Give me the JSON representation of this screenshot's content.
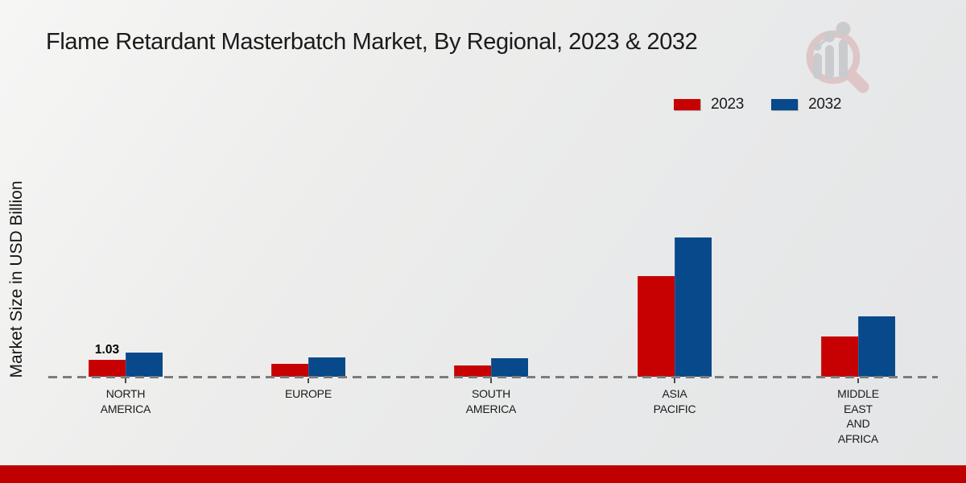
{
  "header": {
    "title": "Flame Retardant Masterbatch Market, By Regional, 2023 & 2032"
  },
  "colors": {
    "series_2023": "#c70101",
    "series_2032": "#07498a",
    "footer_bar": "#c00000",
    "baseline_dash": "#7c7c7c",
    "logo_pink": "#ddbfc1",
    "logo_gray": "#c5c6ca"
  },
  "chart_data": {
    "type": "bar",
    "title": "Flame Retardant Masterbatch Market, By Regional, 2023 & 2032",
    "ylabel": "Market Size in USD Billion",
    "xlabel": "",
    "categories": [
      "NORTH AMERICA",
      "EUROPE",
      "SOUTH AMERICA",
      "ASIA PACIFIC",
      "MIDDLE EAST AND AFRICA"
    ],
    "category_lines": [
      [
        "NORTH",
        "AMERICA"
      ],
      [
        "EUROPE"
      ],
      [
        "SOUTH",
        "AMERICA"
      ],
      [
        "ASIA",
        "PACIFIC"
      ],
      [
        "MIDDLE",
        "EAST",
        "AND",
        "AFRICA"
      ]
    ],
    "series": [
      {
        "name": "2023",
        "color": "#c70101",
        "values": [
          1.03,
          0.78,
          0.69,
          6.13,
          2.45
        ]
      },
      {
        "name": "2032",
        "color": "#07498a",
        "values": [
          1.47,
          1.18,
          1.13,
          8.48,
          3.68
        ]
      }
    ],
    "data_labels": [
      {
        "series": "2023",
        "category": "NORTH AMERICA",
        "text": "1.03"
      }
    ],
    "legend_position": "top-right",
    "baseline_value": 0,
    "grid": "off",
    "axis_style": "dashed zero baseline only"
  }
}
